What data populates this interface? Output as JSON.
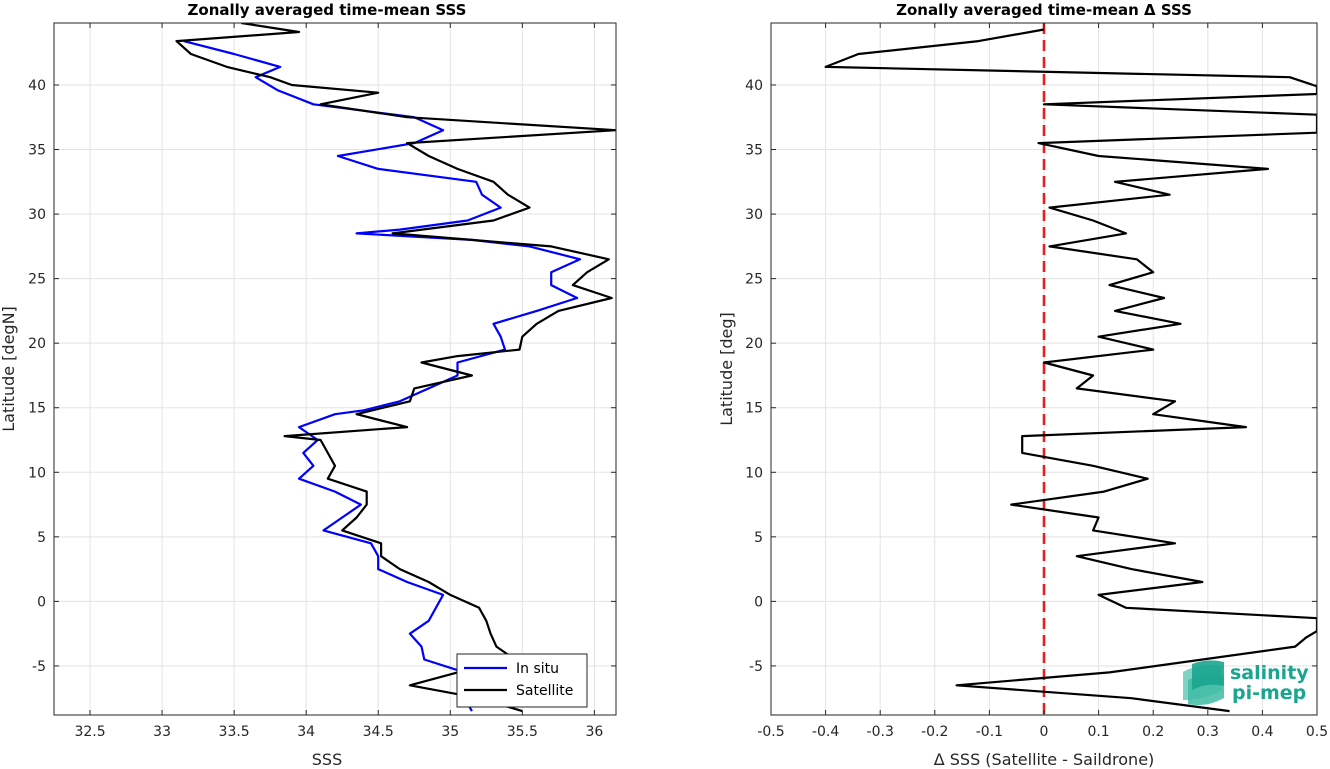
{
  "chart_data": [
    {
      "type": "line",
      "title": "Zonally averaged time-mean SSS",
      "xlabel": "SSS",
      "ylabel": "Latitude [degN]",
      "xlim": [
        32.25,
        36.15
      ],
      "ylim": [
        -8.8,
        44.8
      ],
      "xticks": [
        32.5,
        33,
        33.5,
        34,
        34.5,
        35,
        35.5,
        36
      ],
      "xtick_labels": [
        "32.5",
        "33",
        "33.5",
        "34",
        "34.5",
        "35",
        "35.5",
        "36"
      ],
      "yticks": [
        -5,
        0,
        5,
        10,
        15,
        20,
        25,
        30,
        35,
        40
      ],
      "ytick_labels": [
        "-5",
        "0",
        "5",
        "10",
        "15",
        "20",
        "25",
        "30",
        "35",
        "40"
      ],
      "grid": true,
      "legend": "bottom-right",
      "series": [
        {
          "name": "In situ",
          "color": "#0000ff",
          "points": [
            [
              33.15,
              43.4
            ],
            [
              33.5,
              42.4
            ],
            [
              33.82,
              41.4
            ],
            [
              33.65,
              40.6
            ],
            [
              33.8,
              39.6
            ],
            [
              34.05,
              38.5
            ],
            [
              34.75,
              37.5
            ],
            [
              34.95,
              36.5
            ],
            [
              34.75,
              35.5
            ],
            [
              34.22,
              34.5
            ],
            [
              34.5,
              33.5
            ],
            [
              35.18,
              32.5
            ],
            [
              35.22,
              31.5
            ],
            [
              35.35,
              30.5
            ],
            [
              35.12,
              29.5
            ],
            [
              34.65,
              28.8
            ],
            [
              34.35,
              28.5
            ],
            [
              35.15,
              28.0
            ],
            [
              35.55,
              27.5
            ],
            [
              35.9,
              26.5
            ],
            [
              35.7,
              25.5
            ],
            [
              35.7,
              24.5
            ],
            [
              35.88,
              23.5
            ],
            [
              35.6,
              22.5
            ],
            [
              35.3,
              21.5
            ],
            [
              35.35,
              20.5
            ],
            [
              35.38,
              19.5
            ],
            [
              35.05,
              18.5
            ],
            [
              35.05,
              17.5
            ],
            [
              34.85,
              16.5
            ],
            [
              34.65,
              15.5
            ],
            [
              34.4,
              14.8
            ],
            [
              34.2,
              14.5
            ],
            [
              33.95,
              13.5
            ],
            [
              34.08,
              12.5
            ],
            [
              33.98,
              11.5
            ],
            [
              34.05,
              10.5
            ],
            [
              33.95,
              9.5
            ],
            [
              34.2,
              8.5
            ],
            [
              34.38,
              7.5
            ],
            [
              34.25,
              6.5
            ],
            [
              34.12,
              5.5
            ],
            [
              34.45,
              4.5
            ],
            [
              34.5,
              3.5
            ],
            [
              34.5,
              2.5
            ],
            [
              34.7,
              1.5
            ],
            [
              34.95,
              0.5
            ],
            [
              34.9,
              -0.5
            ],
            [
              34.85,
              -1.5
            ],
            [
              34.72,
              -2.5
            ],
            [
              34.8,
              -3.5
            ],
            [
              34.82,
              -4.5
            ],
            [
              35.1,
              -5.5
            ],
            [
              35.05,
              -6.5
            ],
            [
              35.1,
              -7.5
            ],
            [
              35.15,
              -8.5
            ]
          ]
        },
        {
          "name": "Satellite",
          "color": "#000000",
          "points": [
            [
              33.55,
              44.8
            ],
            [
              33.95,
              44.1
            ],
            [
              33.1,
              43.4
            ],
            [
              33.2,
              42.4
            ],
            [
              33.45,
              41.4
            ],
            [
              33.75,
              40.6
            ],
            [
              33.9,
              40.0
            ],
            [
              34.5,
              39.4
            ],
            [
              34.1,
              38.5
            ],
            [
              34.7,
              37.5
            ],
            [
              36.15,
              36.5
            ],
            [
              34.7,
              35.5
            ],
            [
              34.85,
              34.5
            ],
            [
              35.05,
              33.5
            ],
            [
              35.3,
              32.5
            ],
            [
              35.4,
              31.5
            ],
            [
              35.55,
              30.5
            ],
            [
              35.3,
              29.5
            ],
            [
              34.6,
              28.5
            ],
            [
              35.15,
              28.0
            ],
            [
              35.7,
              27.5
            ],
            [
              36.1,
              26.5
            ],
            [
              35.95,
              25.5
            ],
            [
              35.85,
              24.5
            ],
            [
              36.12,
              23.5
            ],
            [
              35.75,
              22.5
            ],
            [
              35.6,
              21.5
            ],
            [
              35.5,
              20.5
            ],
            [
              35.48,
              19.5
            ],
            [
              35.05,
              19.0
            ],
            [
              34.8,
              18.5
            ],
            [
              35.15,
              17.5
            ],
            [
              34.75,
              16.5
            ],
            [
              34.72,
              15.5
            ],
            [
              34.35,
              14.5
            ],
            [
              34.7,
              13.5
            ],
            [
              33.85,
              12.8
            ],
            [
              34.1,
              12.5
            ],
            [
              34.15,
              11.5
            ],
            [
              34.2,
              10.5
            ],
            [
              34.15,
              9.5
            ],
            [
              34.42,
              8.5
            ],
            [
              34.42,
              7.5
            ],
            [
              34.35,
              6.5
            ],
            [
              34.25,
              5.5
            ],
            [
              34.52,
              4.5
            ],
            [
              34.52,
              3.5
            ],
            [
              34.65,
              2.5
            ],
            [
              34.85,
              1.5
            ],
            [
              35.0,
              0.5
            ],
            [
              35.2,
              -0.5
            ],
            [
              35.25,
              -1.5
            ],
            [
              35.28,
              -2.5
            ],
            [
              35.32,
              -3.5
            ],
            [
              35.45,
              -4.5
            ],
            [
              35.05,
              -5.5
            ],
            [
              34.72,
              -6.5
            ],
            [
              35.2,
              -7.5
            ],
            [
              35.5,
              -8.5
            ]
          ]
        }
      ]
    },
    {
      "type": "line",
      "title": "Zonally averaged time-mean Δ SSS",
      "xlabel": "Δ SSS (Satellite - Saildrone)",
      "ylabel": "Latitude [deg]",
      "xlim": [
        -0.5,
        0.5
      ],
      "ylim": [
        -8.8,
        44.8
      ],
      "xticks": [
        -0.5,
        -0.4,
        -0.3,
        -0.2,
        -0.1,
        0,
        0.1,
        0.2,
        0.3,
        0.4,
        0.5
      ],
      "xtick_labels": [
        "-0.5",
        "-0.4",
        "-0.3",
        "-0.2",
        "-0.1",
        "0",
        "0.1",
        "0.2",
        "0.3",
        "0.4",
        "0.5"
      ],
      "yticks": [
        -5,
        0,
        5,
        10,
        15,
        20,
        25,
        30,
        35,
        40
      ],
      "ytick_labels": [
        "-5",
        "0",
        "5",
        "10",
        "15",
        "20",
        "25",
        "30",
        "35",
        "40"
      ],
      "grid": true,
      "reference_line": {
        "x": 0,
        "color": "#e62020",
        "style": "dashed"
      },
      "series": [
        {
          "name": "",
          "color": "#000000",
          "points": [
            [
              0.0,
              44.3
            ],
            [
              -0.12,
              43.4
            ],
            [
              -0.34,
              42.4
            ],
            [
              -0.4,
              41.4
            ],
            [
              0.45,
              40.6
            ],
            [
              0.5,
              39.9
            ],
            [
              0.5,
              39.3
            ],
            [
              0.0,
              38.5
            ],
            [
              0.5,
              37.7
            ],
            [
              0.5,
              36.3
            ],
            [
              -0.01,
              35.5
            ],
            [
              0.1,
              34.5
            ],
            [
              0.41,
              33.5
            ],
            [
              0.13,
              32.5
            ],
            [
              0.23,
              31.5
            ],
            [
              0.01,
              30.5
            ],
            [
              0.09,
              29.5
            ],
            [
              0.15,
              28.5
            ],
            [
              0.01,
              27.5
            ],
            [
              0.17,
              26.5
            ],
            [
              0.2,
              25.5
            ],
            [
              0.12,
              24.5
            ],
            [
              0.22,
              23.5
            ],
            [
              0.13,
              22.5
            ],
            [
              0.25,
              21.5
            ],
            [
              0.1,
              20.5
            ],
            [
              0.2,
              19.5
            ],
            [
              0.0,
              18.5
            ],
            [
              0.09,
              17.5
            ],
            [
              0.06,
              16.5
            ],
            [
              0.24,
              15.5
            ],
            [
              0.2,
              14.5
            ],
            [
              0.37,
              13.5
            ],
            [
              -0.04,
              12.8
            ],
            [
              -0.04,
              11.5
            ],
            [
              0.09,
              10.5
            ],
            [
              0.19,
              9.5
            ],
            [
              0.11,
              8.5
            ],
            [
              -0.06,
              7.5
            ],
            [
              0.1,
              6.5
            ],
            [
              0.09,
              5.5
            ],
            [
              0.24,
              4.5
            ],
            [
              0.06,
              3.5
            ],
            [
              0.16,
              2.5
            ],
            [
              0.29,
              1.5
            ],
            [
              0.1,
              0.5
            ],
            [
              0.15,
              -0.5
            ],
            [
              0.5,
              -1.3
            ],
            [
              0.5,
              -2.3
            ],
            [
              0.48,
              -2.8
            ],
            [
              0.46,
              -3.5
            ],
            [
              0.12,
              -5.5
            ],
            [
              -0.16,
              -6.5
            ],
            [
              0.16,
              -7.5
            ],
            [
              0.34,
              -8.5
            ]
          ]
        }
      ]
    }
  ],
  "legend": {
    "entries": [
      {
        "label": "In situ",
        "color": "#0000ff"
      },
      {
        "label": "Satellite",
        "color": "#000000"
      }
    ]
  },
  "logo": {
    "line1": "salinity",
    "line2": "pi-mep",
    "color": "#1aa58f"
  }
}
